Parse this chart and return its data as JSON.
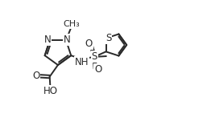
{
  "bg_color": "#ffffff",
  "line_color": "#2a2a2a",
  "line_width": 1.4,
  "font_size": 8.5,
  "xlim": [
    -0.02,
    1.08
  ],
  "ylim": [
    0.05,
    0.98
  ]
}
